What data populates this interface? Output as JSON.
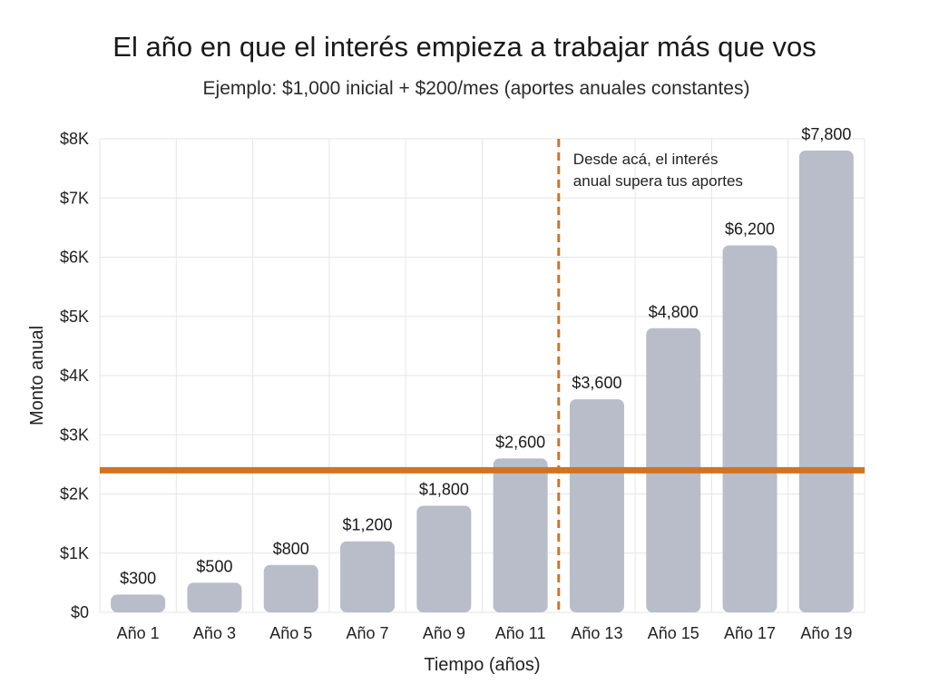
{
  "chart_data": {
    "type": "bar",
    "title": "El año en que el interés empieza a trabajar más que vos",
    "subtitle": "Ejemplo: $1,000 inicial + $200/mes (aportes anuales constantes)",
    "xlabel": "Tiempo (años)",
    "ylabel": "Monto anual",
    "categories": [
      "Año 1",
      "Año 3",
      "Año 5",
      "Año 7",
      "Año 9",
      "Año 11",
      "Año 13",
      "Año 15",
      "Año 17",
      "Año 19"
    ],
    "values": [
      300,
      500,
      800,
      1200,
      1800,
      2600,
      3600,
      4800,
      6200,
      7800
    ],
    "data_labels": [
      "$300",
      "$500",
      "$800",
      "$1,200",
      "$1,800",
      "$2,600",
      "$3,600",
      "$4,800",
      "$6,200",
      "$7,800"
    ],
    "ylim": [
      0,
      8000
    ],
    "yticks": [
      0,
      1000,
      2000,
      3000,
      4000,
      5000,
      6000,
      7000,
      8000
    ],
    "ytick_labels": [
      "$0",
      "$1K",
      "$2K",
      "$3K",
      "$4K",
      "$5K",
      "$6K",
      "$7K",
      "$8K"
    ],
    "grid": true,
    "reference_line": {
      "y": 2400,
      "color": "#d4731f"
    },
    "threshold_marker": {
      "after_category": "Año 11",
      "color": "#c8772a"
    },
    "annotation": {
      "lines": [
        "Desde acá, el interés",
        "anual supera tus aportes"
      ]
    },
    "colors": {
      "bar": "#b9bdc9",
      "grid": "#e6e6e6"
    }
  }
}
